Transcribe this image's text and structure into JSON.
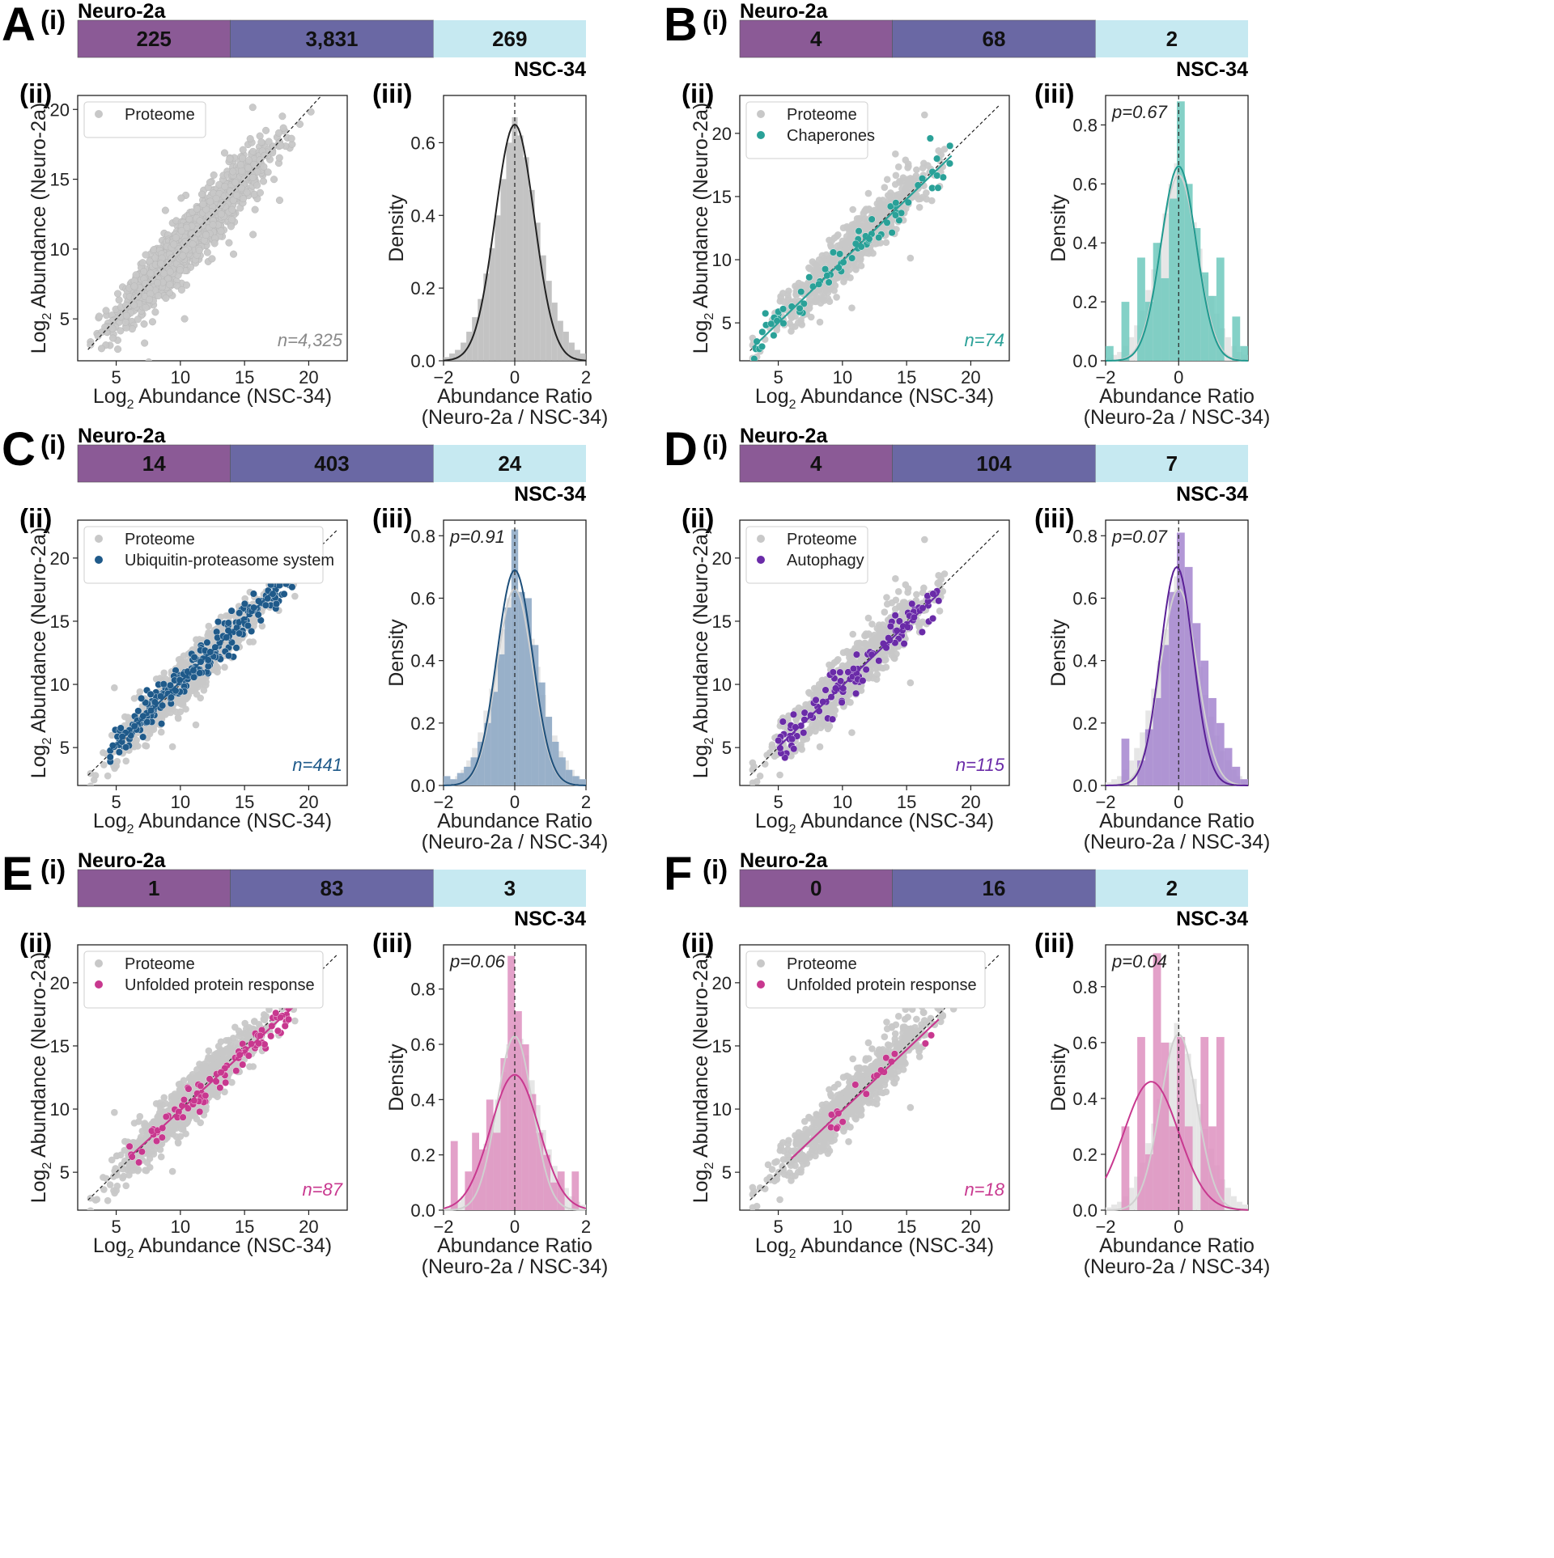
{
  "figure": {
    "top_bar_left_label": "Neuro-2a",
    "top_bar_right_label": "NSC-34",
    "segment_colors": [
      "#8b5a96",
      "#6a68a4",
      "#c6e9f1"
    ],
    "proteome_color": "#c8c8c8",
    "proteome_legend": "Proteome",
    "scatter_xlabel": "Log2 Abundance (NSC-34)",
    "scatter_ylabel": "Log2 Abundance (Neuro-2a)",
    "hist_xlabel_line1": "Abundance Ratio",
    "hist_xlabel_line2": "(Neuro-2a / NSC-34)",
    "hist_ylabel": "Density",
    "sub_i": "(i)",
    "sub_ii": "(ii)",
    "sub_iii": "(iii)"
  },
  "chart_data": [
    {
      "panel": "A",
      "type": "scatter",
      "subtitle": "Proteome only",
      "segments": [
        {
          "label": "225",
          "value": 225
        },
        {
          "label": "3,831",
          "value": 3831
        },
        {
          "label": "269",
          "value": 269
        }
      ],
      "legend": [],
      "highlight_color": "#a0a0a0",
      "n_label": "n=4,325",
      "n_color": "#8a8a8a",
      "scatter": {
        "xlim": [
          2,
          23
        ],
        "ylim": [
          2,
          21
        ],
        "xticks": [
          5,
          10,
          15,
          20
        ],
        "yticks": [
          5,
          10,
          15,
          20
        ],
        "fit": null
      },
      "hist": {
        "xlim": [
          -2,
          2
        ],
        "ylim": [
          0,
          0.73
        ],
        "xticks": [
          -2,
          0,
          2
        ],
        "yticks": [
          0.0,
          0.2,
          0.4,
          0.6
        ],
        "p_label": "",
        "bars": [
          0.01,
          0.02,
          0.03,
          0.05,
          0.08,
          0.12,
          0.17,
          0.24,
          0.31,
          0.4,
          0.5,
          0.6,
          0.67,
          0.62,
          0.56,
          0.47,
          0.38,
          0.29,
          0.22,
          0.16,
          0.11,
          0.08,
          0.05,
          0.03,
          0.02
        ],
        "bar_color": "#b9b9b9",
        "kde_color": "#222222",
        "kde_sigma": 0.55,
        "kde_mu": 0.0,
        "kde_peak": 0.65
      }
    },
    {
      "panel": "B",
      "type": "scatter",
      "subtitle": "Chaperones",
      "segments": [
        {
          "label": "4",
          "value": 4
        },
        {
          "label": "68",
          "value": 68
        },
        {
          "label": "2",
          "value": 2
        }
      ],
      "legend": [
        "Proteome",
        "Chaperones"
      ],
      "highlight_color": "#2aa198",
      "n_label": "n=74",
      "n_color": "#2aa198",
      "scatter": {
        "xlim": [
          2,
          23
        ],
        "ylim": [
          2,
          23
        ],
        "xticks": [
          5,
          10,
          15,
          20
        ],
        "yticks": [
          5,
          10,
          15,
          20
        ],
        "fit": {
          "slope": 0.98,
          "intercept": 0.1,
          "x0": 3,
          "x1": 18.5
        }
      },
      "hist": {
        "xlim": [
          -2,
          1.9
        ],
        "ylim": [
          0,
          0.9
        ],
        "xticks": [
          -2,
          0
        ],
        "yticks": [
          0.0,
          0.2,
          0.4,
          0.6,
          0.8
        ],
        "p_label": "p=0.67",
        "bars": [
          0.05,
          0.0,
          0.2,
          0.0,
          0.35,
          0.2,
          0.4,
          0.28,
          0.55,
          0.88,
          0.6,
          0.45,
          0.3,
          0.22,
          0.35,
          0.0,
          0.15,
          0.05
        ],
        "bar_color": "#6fc9bd",
        "kde_color": "#1f9a8f",
        "kde_sigma": 0.48,
        "kde_mu": 0.0,
        "kde_peak": 0.66
      }
    },
    {
      "panel": "C",
      "type": "scatter",
      "subtitle": "UPS",
      "segments": [
        {
          "label": "14",
          "value": 14
        },
        {
          "label": "403",
          "value": 403
        },
        {
          "label": "24",
          "value": 24
        }
      ],
      "legend": [
        "Proteome",
        "Ubiquitin-proteasome system"
      ],
      "highlight_color": "#1f5a8a",
      "n_label": "n=441",
      "n_color": "#1f5a8a",
      "scatter": {
        "xlim": [
          2,
          23
        ],
        "ylim": [
          2,
          23
        ],
        "xticks": [
          5,
          10,
          15,
          20
        ],
        "yticks": [
          5,
          10,
          15,
          20
        ],
        "fit": {
          "slope": 0.99,
          "intercept": 0.3,
          "x0": 4.5,
          "x1": 19
        }
      },
      "hist": {
        "xlim": [
          -2,
          2
        ],
        "ylim": [
          0,
          0.85
        ],
        "xticks": [
          -2,
          0,
          2
        ],
        "yticks": [
          0.0,
          0.2,
          0.4,
          0.6,
          0.8
        ],
        "p_label": "p=0.91",
        "bars": [
          0.03,
          0.02,
          0.04,
          0.06,
          0.09,
          0.14,
          0.2,
          0.3,
          0.42,
          0.57,
          0.82,
          0.62,
          0.6,
          0.45,
          0.33,
          0.22,
          0.14,
          0.09,
          0.05,
          0.03,
          0.02
        ],
        "bar_color": "#8aa6c3",
        "kde_color": "#1d4f7a",
        "kde_sigma": 0.5,
        "kde_mu": 0.0,
        "kde_peak": 0.69
      }
    },
    {
      "panel": "D",
      "type": "scatter",
      "subtitle": "Autophagy",
      "segments": [
        {
          "label": "4",
          "value": 4
        },
        {
          "label": "104",
          "value": 104
        },
        {
          "label": "7",
          "value": 7
        }
      ],
      "legend": [
        "Proteome",
        "Autophagy"
      ],
      "highlight_color": "#6a2ba8",
      "n_label": "n=115",
      "n_color": "#6a2ba8",
      "scatter": {
        "xlim": [
          2,
          23
        ],
        "ylim": [
          2,
          23
        ],
        "xticks": [
          5,
          10,
          15,
          20
        ],
        "yticks": [
          5,
          10,
          15,
          20
        ],
        "fit": {
          "slope": 0.97,
          "intercept": 0.2,
          "x0": 5,
          "x1": 17.5
        }
      },
      "hist": {
        "xlim": [
          -2,
          1.9
        ],
        "ylim": [
          0,
          0.85
        ],
        "xticks": [
          -2,
          0
        ],
        "yticks": [
          0.0,
          0.2,
          0.4,
          0.6,
          0.8
        ],
        "p_label": "p=0.07",
        "bars": [
          0.0,
          0.0,
          0.15,
          0.0,
          0.08,
          0.18,
          0.28,
          0.45,
          0.62,
          0.81,
          0.7,
          0.52,
          0.4,
          0.28,
          0.2,
          0.12,
          0.06,
          0.02
        ],
        "bar_color": "#a585cf",
        "kde_color": "#5a2096",
        "kde_sigma": 0.45,
        "kde_mu": -0.05,
        "kde_peak": 0.7
      }
    },
    {
      "panel": "E",
      "type": "scatter",
      "subtitle": "UPR",
      "segments": [
        {
          "label": "1",
          "value": 1
        },
        {
          "label": "83",
          "value": 83
        },
        {
          "label": "3",
          "value": 3
        }
      ],
      "legend": [
        "Proteome",
        "Unfolded protein response"
      ],
      "highlight_color": "#c8388f",
      "n_label": "n=87",
      "n_color": "#c8388f",
      "scatter": {
        "xlim": [
          2,
          23
        ],
        "ylim": [
          2,
          23
        ],
        "xticks": [
          5,
          10,
          15,
          20
        ],
        "yticks": [
          5,
          10,
          15,
          20
        ],
        "fit": {
          "slope": 0.93,
          "intercept": 0.6,
          "x0": 6,
          "x1": 19
        }
      },
      "hist": {
        "xlim": [
          -2,
          2
        ],
        "ylim": [
          0,
          0.96
        ],
        "xticks": [
          -2,
          0,
          2
        ],
        "yticks": [
          0.0,
          0.2,
          0.4,
          0.6,
          0.8
        ],
        "p_label": "p=0.06",
        "bars": [
          0.0,
          0.25,
          0.0,
          0.14,
          0.28,
          0.22,
          0.4,
          0.28,
          0.55,
          0.92,
          0.72,
          0.6,
          0.42,
          0.28,
          0.2,
          0.1,
          0.14,
          0.0,
          0.14,
          0.0
        ],
        "bar_color": "#de90c0",
        "kde_color": "#c8388f",
        "kde_sigma": 0.68,
        "kde_mu": 0.0,
        "kde_peak": 0.49
      }
    },
    {
      "panel": "F",
      "type": "scatter",
      "subtitle": "UPR",
      "segments": [
        {
          "label": "0",
          "value": 0
        },
        {
          "label": "16",
          "value": 16
        },
        {
          "label": "2",
          "value": 2
        }
      ],
      "legend": [
        "Proteome",
        "Unfolded protein response"
      ],
      "highlight_color": "#c8388f",
      "n_label": "n=18",
      "n_color": "#c8388f",
      "scatter": {
        "xlim": [
          2,
          23
        ],
        "ylim": [
          2,
          23
        ],
        "xticks": [
          5,
          10,
          15,
          20
        ],
        "yticks": [
          5,
          10,
          15,
          20
        ],
        "fit": {
          "slope": 0.96,
          "intercept": 0.3,
          "x0": 6,
          "x1": 17.5
        }
      },
      "hist": {
        "xlim": [
          -2,
          1.9
        ],
        "ylim": [
          0,
          0.95
        ],
        "xticks": [
          -2,
          0
        ],
        "yticks": [
          0.0,
          0.2,
          0.4,
          0.6,
          0.8
        ],
        "p_label": "p=0.04",
        "bars": [
          0.0,
          0.0,
          0.3,
          0.0,
          0.62,
          0.2,
          0.92,
          0.6,
          0.3,
          0.62,
          0.3,
          0.0,
          0.62,
          0.3,
          0.62,
          0.0,
          0.0,
          0.0
        ],
        "bar_color": "#de90c0",
        "kde_color": "#c8388f",
        "kde_sigma": 0.75,
        "kde_mu": -0.75,
        "kde_peak": 0.46
      }
    }
  ]
}
